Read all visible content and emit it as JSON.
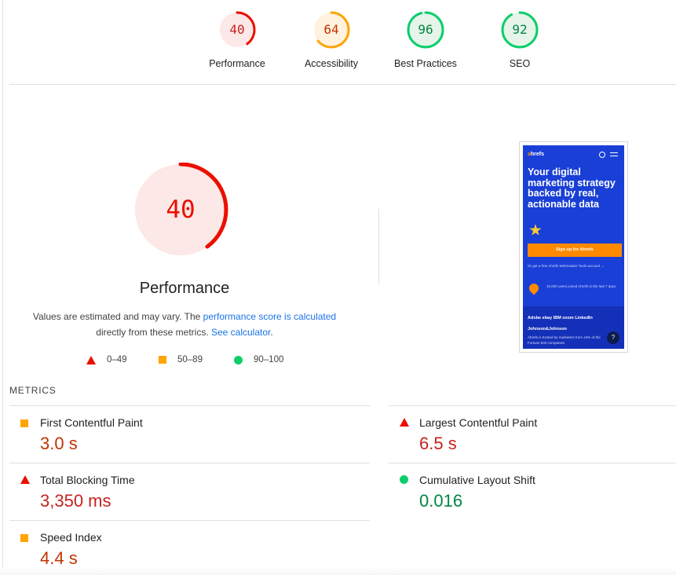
{
  "categories": [
    {
      "label": "Performance",
      "score": "40",
      "fraction": 0.4,
      "color": "#eb0f00",
      "bg": "#fce8e6",
      "text_color": "#c5221f"
    },
    {
      "label": "Accessibility",
      "score": "64",
      "fraction": 0.64,
      "color": "#ffa400",
      "bg": "#fff3e0",
      "text_color": "#c33300"
    },
    {
      "label": "Best Practices",
      "score": "96",
      "fraction": 0.96,
      "color": "#0cce6b",
      "bg": "#e6f4ea",
      "text_color": "#018642"
    },
    {
      "label": "SEO",
      "score": "92",
      "fraction": 0.92,
      "color": "#0cce6b",
      "bg": "#e6f4ea",
      "text_color": "#018642"
    }
  ],
  "performance": {
    "score": "40",
    "fraction": 0.4,
    "title": "Performance",
    "desc_pre": "Values are estimated and may vary. The ",
    "desc_link1": "performance score is calculated",
    "desc_mid": "directly from these metrics. ",
    "desc_link2": "See calculator",
    "desc_post": "."
  },
  "legend": [
    {
      "icon": "triangle-icon",
      "range": "0–49"
    },
    {
      "icon": "square-icon",
      "range": "50–89"
    },
    {
      "icon": "circle-icon",
      "range": "90–100"
    }
  ],
  "screenshot": {
    "logo_a": "a",
    "logo_rest": "hrefs",
    "headline": "Your digital marketing strategy backed by real, actionable data",
    "cta": "Sign up for Ahrefs",
    "small_text": "Or get a free Ahrefs Webmaster Tools account →",
    "users_text": "10,000 users joined Ahrefs in the last 7 days",
    "brands": "Adobe ebay IBM zoom LinkedIn Johnson&Johnson",
    "trusted": "Ahrefs is trusted by marketers from 44% of the Fortune 500 companies",
    "help": "?"
  },
  "metrics": {
    "header": "METRICS",
    "items": [
      {
        "label": "First Contentful Paint",
        "value": "3.0 s",
        "status": "average",
        "icon": "square-icon"
      },
      {
        "label": "Largest Contentful Paint",
        "value": "6.5 s",
        "status": "fail",
        "icon": "triangle-icon"
      },
      {
        "label": "Total Blocking Time",
        "value": "3,350 ms",
        "status": "fail",
        "icon": "triangle-icon"
      },
      {
        "label": "Cumulative Layout Shift",
        "value": "0.016",
        "status": "pass",
        "icon": "circle-icon"
      },
      {
        "label": "Speed Index",
        "value": "4.4 s",
        "status": "average",
        "icon": "square-icon"
      }
    ]
  }
}
